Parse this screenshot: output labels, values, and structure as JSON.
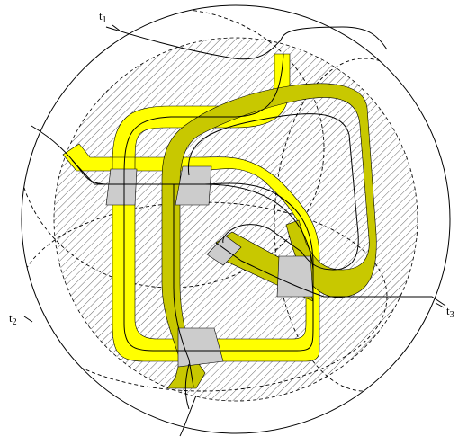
{
  "labels": {
    "t1": {
      "main": "t",
      "sub": "1"
    },
    "t2": {
      "main": "t",
      "sub": "2"
    },
    "t3": {
      "main": "t",
      "sub": "3"
    }
  },
  "colors": {
    "yellow_band": "#ffff00",
    "olive_band": "#c8c800",
    "crossing": "#cccccc",
    "hatch": "#555555",
    "outline": "#000000"
  }
}
